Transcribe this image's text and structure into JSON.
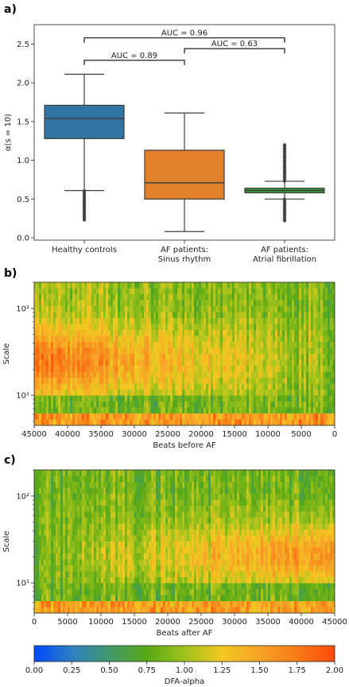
{
  "panels": {
    "a": "a)",
    "b": "b)",
    "c": "c)"
  },
  "chart_data": [
    {
      "type": "box",
      "panel": "a)",
      "ylabel": "α(s = 10)",
      "ylim": [
        0.0,
        2.75
      ],
      "yticks": [
        "0.0",
        "0.5",
        "1.0",
        "1.5",
        "2.0",
        "2.5"
      ],
      "categories": [
        "Healthy controls",
        "AF patients:\nSinus rhythm",
        "AF patients:\nAtrial fibrillation"
      ],
      "colors": [
        "#3274a1",
        "#e1812c",
        "#3a923a"
      ],
      "boxes": [
        {
          "q1": 1.28,
          "median": 1.54,
          "q3": 1.71,
          "whisker_low": 0.61,
          "whisker_high": 2.11,
          "outliers_range": [
            0.23,
            0.61
          ]
        },
        {
          "q1": 0.5,
          "median": 0.71,
          "q3": 1.13,
          "whisker_low": 0.08,
          "whisker_high": 1.61,
          "outliers_range": null
        },
        {
          "q1": 0.58,
          "median": 0.61,
          "q3": 0.64,
          "whisker_low": 0.5,
          "whisker_high": 0.73,
          "outliers_low_range": [
            0.22,
            0.5
          ],
          "outliers_high_range": [
            0.73,
            1.2
          ]
        }
      ],
      "annotations": [
        {
          "text": "AUC = 0.96",
          "from": 0,
          "to": 2,
          "y": 2.58
        },
        {
          "text": "AUC = 0.63",
          "from": 1,
          "to": 2,
          "y": 2.44
        },
        {
          "text": "AUC = 0.89",
          "from": 0,
          "to": 1,
          "y": 2.29
        }
      ]
    },
    {
      "type": "heatmap",
      "panel": "b)",
      "xlabel": "Beats before AF",
      "ylabel": "Scale",
      "xticks": [
        "45000",
        "40000",
        "35000",
        "30000",
        "25000",
        "20000",
        "15000",
        "10000",
        "5000",
        "0"
      ],
      "xlim": [
        45000,
        0
      ],
      "yscale": "log",
      "ylim": [
        4.5,
        200
      ],
      "yticks": [
        "10¹",
        "10²"
      ],
      "color_encoding": "DFA-alpha"
    },
    {
      "type": "heatmap",
      "panel": "c)",
      "xlabel": "Beats after AF",
      "ylabel": "Scale",
      "xticks": [
        "0",
        "5000",
        "10000",
        "15000",
        "20000",
        "25000",
        "30000",
        "35000",
        "40000",
        "45000"
      ],
      "xlim": [
        0,
        45000
      ],
      "yscale": "log",
      "ylim": [
        4.5,
        200
      ],
      "yticks": [
        "10¹",
        "10²"
      ],
      "color_encoding": "DFA-alpha"
    },
    {
      "type": "colorbar",
      "label": "DFA-alpha",
      "range": [
        0.0,
        2.0
      ],
      "ticks": [
        "0.00",
        "0.25",
        "0.50",
        "0.75",
        "1.00",
        "1.25",
        "1.50",
        "1.75",
        "2.00"
      ],
      "stops": [
        "#0049ff",
        "#2e7fc2",
        "#3f9a6a",
        "#58a817",
        "#9fc21b",
        "#f3c820",
        "#f6a326",
        "#f87b17",
        "#fb4a0a"
      ]
    }
  ]
}
